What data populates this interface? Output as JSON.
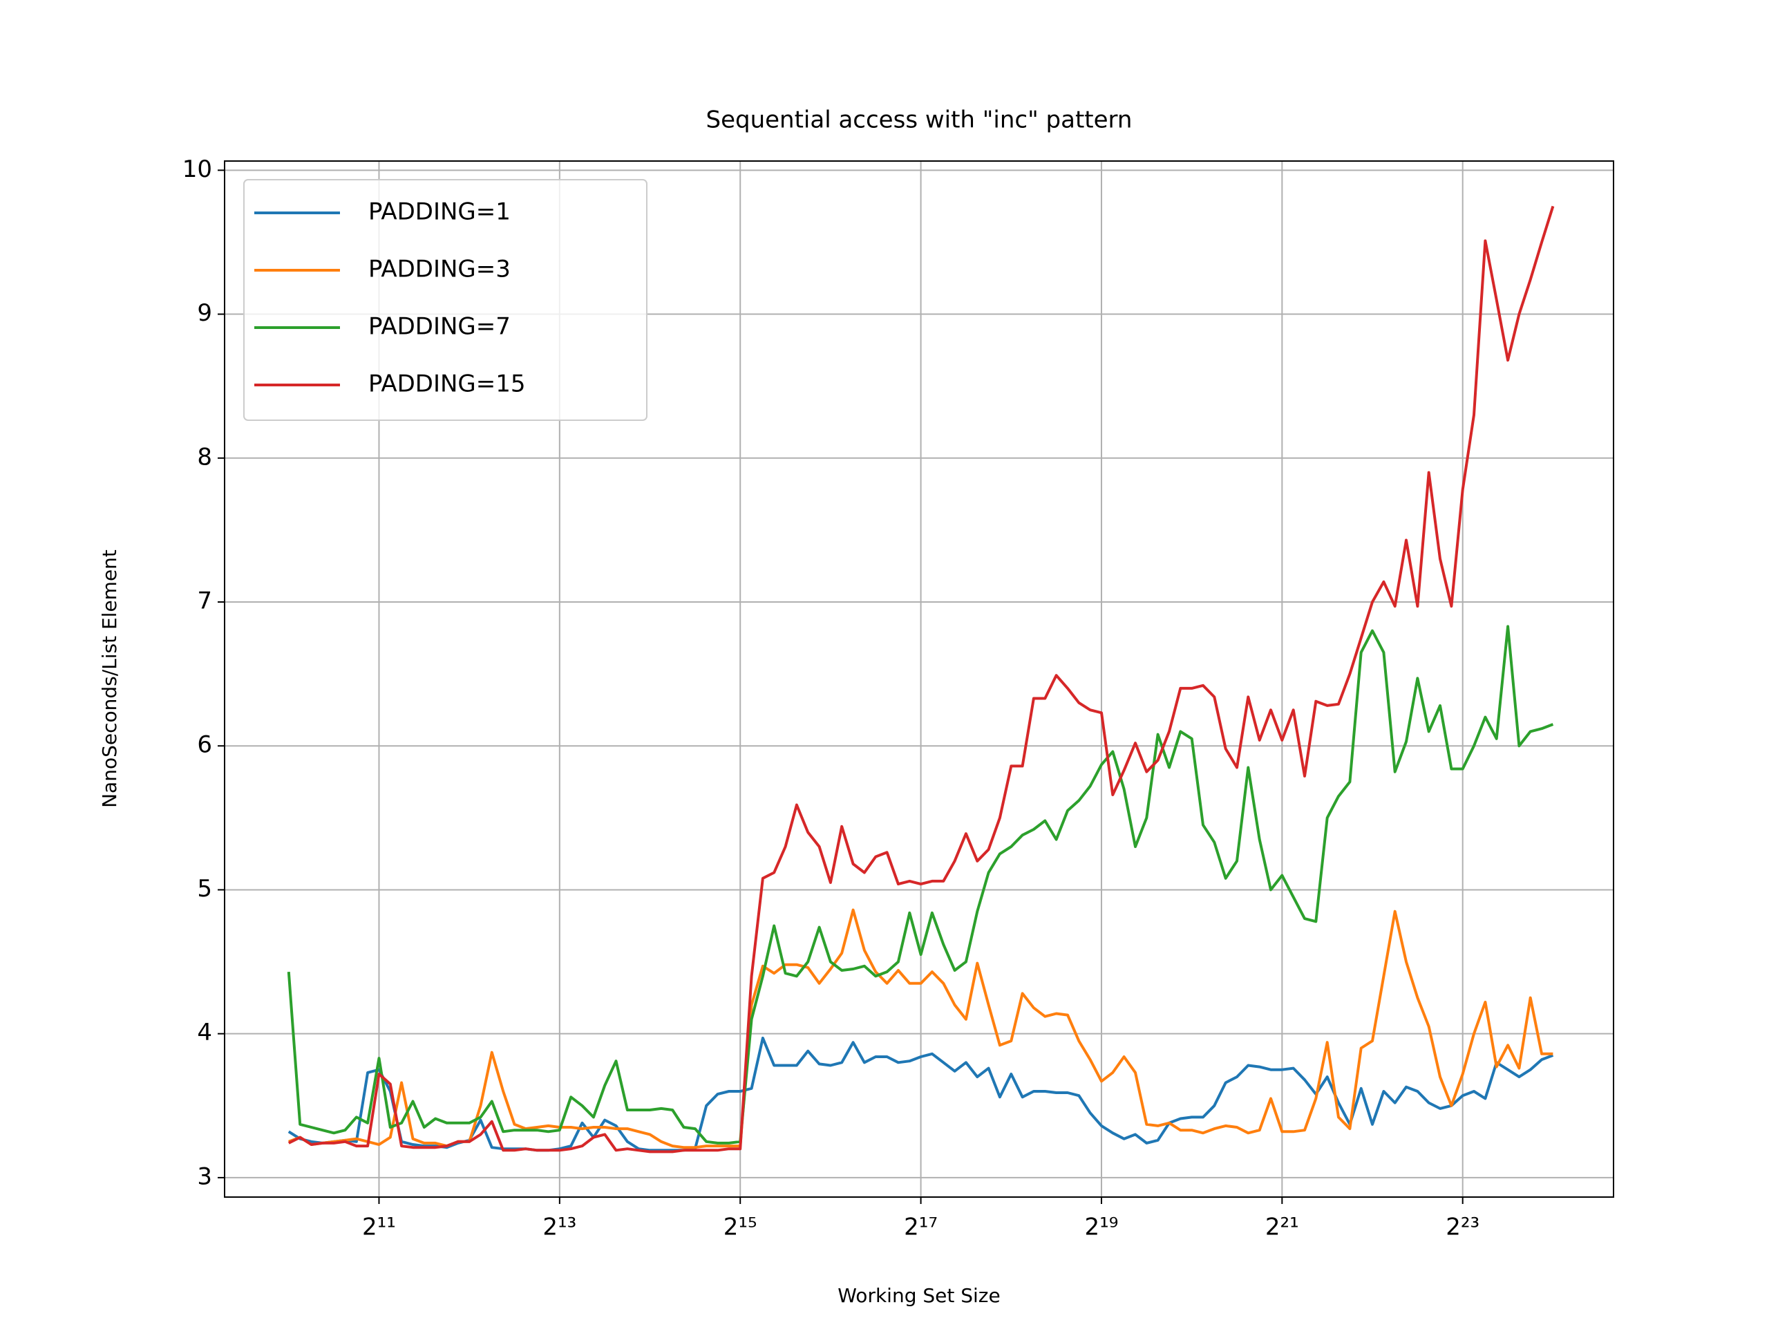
{
  "chart_data": {
    "type": "line",
    "title": "Sequential access with \"inc\" pattern",
    "xlabel": "Working Set Size",
    "ylabel": "NanoSeconds/List Element",
    "xscale": "log",
    "xlog_base": 2,
    "grid": true,
    "legend": "upper left",
    "xlim": [
      626,
      26700000
    ],
    "ylim": [
      2.865,
      10.064
    ],
    "xticks": [
      {
        "value": 2048,
        "label": "2¹¹"
      },
      {
        "value": 8192,
        "label": "2¹³"
      },
      {
        "value": 32768,
        "label": "2¹⁵"
      },
      {
        "value": 131072,
        "label": "2¹⁷"
      },
      {
        "value": 524288,
        "label": "2¹⁹"
      },
      {
        "value": 2097152,
        "label": "2²¹"
      },
      {
        "value": 8388608,
        "label": "2²³"
      }
    ],
    "yticks": [
      3,
      4,
      5,
      6,
      7,
      8,
      9,
      10
    ],
    "x": [
      1024,
      1117,
      1218,
      1328,
      1448,
      1579,
      1722,
      1878,
      2048,
      2233,
      2435,
      2656,
      2896,
      3158,
      3444,
      3756,
      4096,
      4467,
      4871,
      5312,
      5793,
      6317,
      6889,
      7512,
      8192,
      8933,
      9742,
      10624,
      11585,
      12634,
      13777,
      15024,
      16384,
      17867,
      19484,
      21247,
      23170,
      25268,
      27554,
      30048,
      32768,
      35734,
      38968,
      42495,
      46341,
      50535,
      55109,
      60097,
      65536,
      71468,
      77936,
      84990,
      92682,
      101070,
      110218,
      120194,
      131072,
      142935,
      155872,
      169979,
      185364,
      202141,
      220436,
      240387,
      262144,
      285870,
      311744,
      339958,
      370728,
      404281,
      440872,
      480774,
      524288,
      571740,
      623487,
      679917,
      741455,
      808562,
      881744,
      961548,
      1048576,
      1143480,
      1246974,
      1359833,
      1482910,
      1617125,
      1763488,
      1923097,
      2097152,
      2286960,
      2493948,
      2719667,
      2965821,
      3234250,
      3526975,
      3846193,
      4194304,
      4573920,
      4987896,
      5439334,
      5931642,
      6468501,
      7053950,
      7692387,
      8388608,
      9147841,
      9975792,
      10878669,
      11863283,
      12937001,
      14107900,
      15384774,
      16777216
    ],
    "series": [
      {
        "name": "PADDING=1",
        "color": "#1f77b4",
        "values": [
          3.32,
          3.27,
          3.25,
          3.24,
          3.25,
          3.26,
          3.25,
          3.73,
          3.75,
          3.6,
          3.25,
          3.23,
          3.22,
          3.22,
          3.21,
          3.24,
          3.26,
          3.4,
          3.21,
          3.2,
          3.2,
          3.2,
          3.19,
          3.19,
          3.2,
          3.22,
          3.38,
          3.28,
          3.4,
          3.36,
          3.25,
          3.2,
          3.19,
          3.19,
          3.19,
          3.19,
          3.2,
          3.5,
          3.58,
          3.6,
          3.6,
          3.62,
          3.97,
          3.78,
          3.78,
          3.78,
          3.88,
          3.79,
          3.78,
          3.8,
          3.94,
          3.8,
          3.84,
          3.84,
          3.8,
          3.81,
          3.84,
          3.86,
          3.8,
          3.74,
          3.8,
          3.7,
          3.76,
          3.56,
          3.72,
          3.56,
          3.6,
          3.6,
          3.59,
          3.59,
          3.57,
          3.45,
          3.36,
          3.31,
          3.27,
          3.3,
          3.24,
          3.26,
          3.38,
          3.41,
          3.42,
          3.42,
          3.5,
          3.66,
          3.7,
          3.78,
          3.77,
          3.75,
          3.75,
          3.76,
          3.68,
          3.58,
          3.7,
          3.52,
          3.37,
          3.62,
          3.37,
          3.6,
          3.52,
          3.63,
          3.6,
          3.52,
          3.48,
          3.5,
          3.57,
          3.6,
          3.55,
          3.8,
          3.75,
          3.7,
          3.75,
          3.82,
          3.85
        ]
      },
      {
        "name": "PADDING=3",
        "color": "#ff7f0e",
        "values": [
          3.25,
          3.28,
          3.23,
          3.24,
          3.25,
          3.26,
          3.27,
          3.25,
          3.23,
          3.28,
          3.66,
          3.27,
          3.24,
          3.24,
          3.22,
          3.25,
          3.25,
          3.5,
          3.87,
          3.6,
          3.37,
          3.34,
          3.35,
          3.36,
          3.35,
          3.35,
          3.34,
          3.35,
          3.35,
          3.34,
          3.34,
          3.32,
          3.3,
          3.25,
          3.22,
          3.21,
          3.21,
          3.22,
          3.22,
          3.22,
          3.22,
          4.2,
          4.47,
          4.42,
          4.48,
          4.48,
          4.46,
          4.35,
          4.45,
          4.56,
          4.86,
          4.58,
          4.43,
          4.35,
          4.44,
          4.35,
          4.35,
          4.43,
          4.35,
          4.2,
          4.1,
          4.49,
          4.2,
          3.92,
          3.95,
          4.28,
          4.18,
          4.12,
          4.14,
          4.13,
          3.95,
          3.82,
          3.67,
          3.73,
          3.84,
          3.73,
          3.37,
          3.36,
          3.38,
          3.33,
          3.33,
          3.31,
          3.34,
          3.36,
          3.35,
          3.31,
          3.33,
          3.55,
          3.32,
          3.32,
          3.33,
          3.55,
          3.94,
          3.42,
          3.34,
          3.9,
          3.95,
          4.4,
          4.85,
          4.5,
          4.25,
          4.05,
          3.7,
          3.5,
          3.72,
          4.0,
          4.22,
          3.77,
          3.92,
          3.76,
          4.25,
          3.86,
          3.86
        ]
      },
      {
        "name": "PADDING=7",
        "color": "#2ca02c",
        "values": [
          4.43,
          3.37,
          3.35,
          3.33,
          3.31,
          3.33,
          3.42,
          3.38,
          3.83,
          3.35,
          3.38,
          3.53,
          3.35,
          3.41,
          3.38,
          3.38,
          3.38,
          3.42,
          3.53,
          3.32,
          3.33,
          3.33,
          3.33,
          3.32,
          3.33,
          3.56,
          3.5,
          3.42,
          3.64,
          3.81,
          3.47,
          3.47,
          3.47,
          3.48,
          3.47,
          3.35,
          3.34,
          3.25,
          3.24,
          3.24,
          3.25,
          4.1,
          4.4,
          4.75,
          4.42,
          4.4,
          4.5,
          4.74,
          4.5,
          4.44,
          4.45,
          4.47,
          4.4,
          4.43,
          4.5,
          4.84,
          4.55,
          4.84,
          4.62,
          4.44,
          4.5,
          4.85,
          5.12,
          5.25,
          5.3,
          5.38,
          5.42,
          5.48,
          5.35,
          5.55,
          5.62,
          5.72,
          5.87,
          5.96,
          5.7,
          5.3,
          5.5,
          6.08,
          5.85,
          6.1,
          6.05,
          5.45,
          5.33,
          5.08,
          5.2,
          5.85,
          5.35,
          5.0,
          5.1,
          4.95,
          4.8,
          4.78,
          5.5,
          5.65,
          5.75,
          6.65,
          6.8,
          6.65,
          5.82,
          6.03,
          6.47,
          6.1,
          6.28,
          5.84,
          5.84,
          6.0,
          6.2,
          6.05,
          6.83,
          6.0,
          6.1,
          6.12,
          6.15
        ]
      },
      {
        "name": "PADDING=15",
        "color": "#d62728",
        "values": [
          3.24,
          3.28,
          3.23,
          3.24,
          3.24,
          3.25,
          3.22,
          3.22,
          3.72,
          3.65,
          3.22,
          3.21,
          3.21,
          3.21,
          3.22,
          3.25,
          3.25,
          3.3,
          3.39,
          3.19,
          3.19,
          3.2,
          3.19,
          3.19,
          3.19,
          3.2,
          3.22,
          3.28,
          3.3,
          3.19,
          3.2,
          3.19,
          3.18,
          3.18,
          3.18,
          3.19,
          3.19,
          3.19,
          3.19,
          3.2,
          3.2,
          4.4,
          5.08,
          5.12,
          5.3,
          5.59,
          5.4,
          5.3,
          5.05,
          5.44,
          5.18,
          5.12,
          5.23,
          5.26,
          5.04,
          5.06,
          5.04,
          5.06,
          5.06,
          5.2,
          5.39,
          5.2,
          5.28,
          5.5,
          5.86,
          5.86,
          6.33,
          6.33,
          6.49,
          6.4,
          6.3,
          6.25,
          6.23,
          5.66,
          5.83,
          6.02,
          5.82,
          5.9,
          6.1,
          6.4,
          6.4,
          6.42,
          6.34,
          5.98,
          5.85,
          6.34,
          6.04,
          6.25,
          6.04,
          6.25,
          5.79,
          6.31,
          6.28,
          6.29,
          6.5,
          6.75,
          7.0,
          7.14,
          6.97,
          7.43,
          6.97,
          7.9,
          7.3,
          6.97,
          7.78,
          8.3,
          9.51,
          9.1,
          8.68,
          9.0,
          9.24,
          9.5,
          9.75
        ]
      }
    ]
  }
}
